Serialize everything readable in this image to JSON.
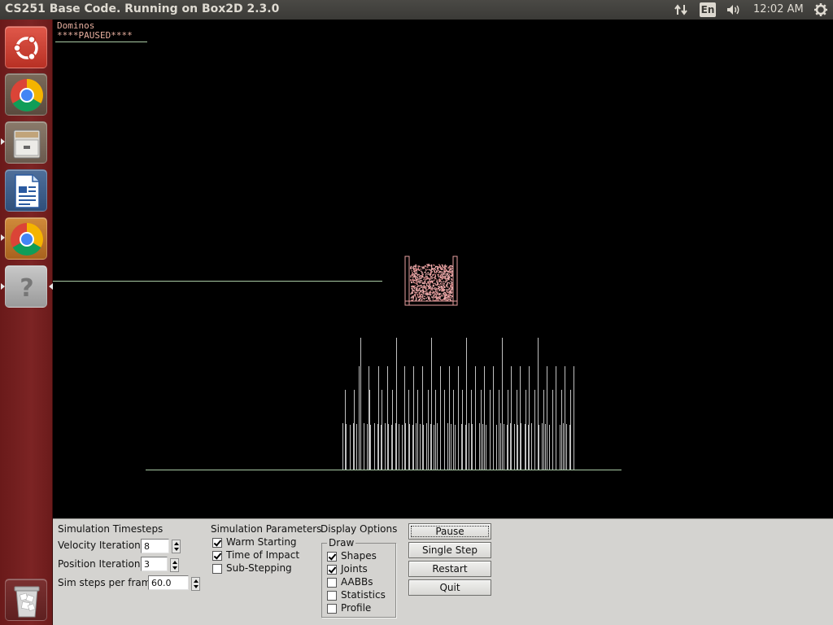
{
  "window": {
    "title": "CS251 Base Code. Running on Box2D 2.3.0"
  },
  "top_panel": {
    "keyboard_layout": "En",
    "clock": "12:02 AM",
    "indicators": [
      "network-icon",
      "keyboard-layout-icon",
      "volume-icon",
      "power-gear-icon"
    ]
  },
  "launcher": {
    "items": [
      {
        "icon": "ubuntu-dash-icon"
      },
      {
        "icon": "chrome-icon"
      },
      {
        "icon": "file-manager-icon"
      },
      {
        "icon": "libreoffice-writer-icon"
      },
      {
        "icon": "chrome-icon"
      },
      {
        "icon": "help-icon"
      },
      {
        "icon": "trash-icon"
      }
    ],
    "bg_color": "#7c2424"
  },
  "simulation": {
    "name": "Dominos",
    "status": "****PAUSED****",
    "colors": {
      "ground": "#a9c9a4",
      "dominos": "#c0c0c0",
      "particles": "#f0b0b0",
      "box": "#e8a0a0",
      "hud": "#e8b0a0"
    }
  },
  "controls": {
    "timesteps": {
      "heading": "Simulation Timesteps",
      "velocity_label": "Velocity Iterations",
      "velocity_value": "8",
      "position_label": "Position Iterations",
      "position_value": "3",
      "steps_label": "Sim steps per frame",
      "steps_value": "60.0"
    },
    "parameters": {
      "heading": "Simulation Parameters",
      "items": [
        {
          "label": "Warm Starting",
          "checked": true
        },
        {
          "label": "Time of Impact",
          "checked": true
        },
        {
          "label": "Sub-Stepping",
          "checked": false
        }
      ]
    },
    "display": {
      "heading": "Display Options",
      "group_label": "Draw",
      "items": [
        {
          "label": "Shapes",
          "checked": true
        },
        {
          "label": "Joints",
          "checked": true
        },
        {
          "label": "AABBs",
          "checked": false
        },
        {
          "label": "Statistics",
          "checked": false
        },
        {
          "label": "Profile",
          "checked": false
        }
      ]
    },
    "buttons": {
      "pause": "Pause",
      "single_step": "Single Step",
      "restart": "Restart",
      "quit": "Quit"
    }
  }
}
